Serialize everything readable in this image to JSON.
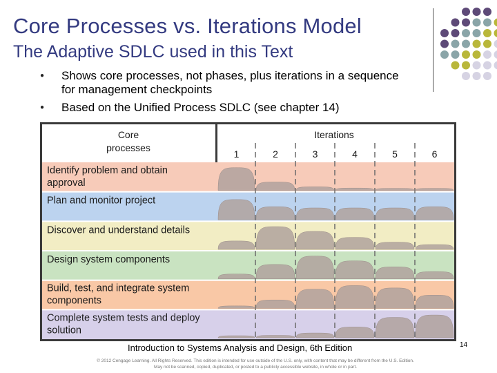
{
  "slide": {
    "title": "Core Processes vs. Iterations Model",
    "subtitle": "The Adaptive SDLC used in this Text",
    "bullets": [
      "Shows core processes, not phases, plus iterations in a sequence for management checkpoints",
      "Based on the Unified Process SDLC (see chapter 14)"
    ],
    "footer": "Introduction to Systems Analysis and Design, 6th Edition",
    "page_number": "14",
    "copyright_line1": "© 2012 Cengage Learning. All Rights Reserved. This edition is intended for use outside of the U.S. only, with content that may be different from the U.S. Edition.",
    "copyright_line2": "May not be scanned, copied, duplicated, or posted to a publicly accessible website, in whole or in part."
  },
  "colors": {
    "title": "#333a80",
    "dot_purple": "#5e4a78",
    "dot_teal": "#8aa5a8",
    "dot_olive": "#b9b73a",
    "dot_lavender": "#d6d3e3"
  },
  "diagram": {
    "header_left_line1": "Core",
    "header_left_line2": "processes",
    "header_right": "Iterations",
    "iterations": [
      "1",
      "2",
      "3",
      "4",
      "5",
      "6"
    ],
    "processes": [
      {
        "line1": "Identify problem and obtain",
        "line2": "approval",
        "color": "#f7cbb9",
        "effort": [
          0.95,
          0.35,
          0.15,
          0.1,
          0.08,
          0.05
        ]
      },
      {
        "line1": "Plan and monitor project",
        "line2": "",
        "color": "#bcd3ef",
        "effort": [
          0.85,
          0.55,
          0.5,
          0.5,
          0.5,
          0.55
        ]
      },
      {
        "line1": "Discover and understand details",
        "line2": "",
        "color": "#f2edc4",
        "effort": [
          0.35,
          0.95,
          0.75,
          0.5,
          0.3,
          0.2
        ]
      },
      {
        "line1": "Design system components",
        "line2": "",
        "color": "#c9e3c1",
        "effort": [
          0.2,
          0.6,
          0.95,
          0.75,
          0.5,
          0.3
        ]
      },
      {
        "line1": "Build, test, and integrate system",
        "line2": "components",
        "color": "#f9c8a6",
        "effort": [
          0.1,
          0.35,
          0.8,
          0.95,
          0.85,
          0.55
        ]
      },
      {
        "line1": "Complete system tests and deploy",
        "line2": "solution",
        "color": "#d7d0ea",
        "effort": [
          0.05,
          0.1,
          0.2,
          0.45,
          0.85,
          0.95
        ]
      }
    ]
  }
}
